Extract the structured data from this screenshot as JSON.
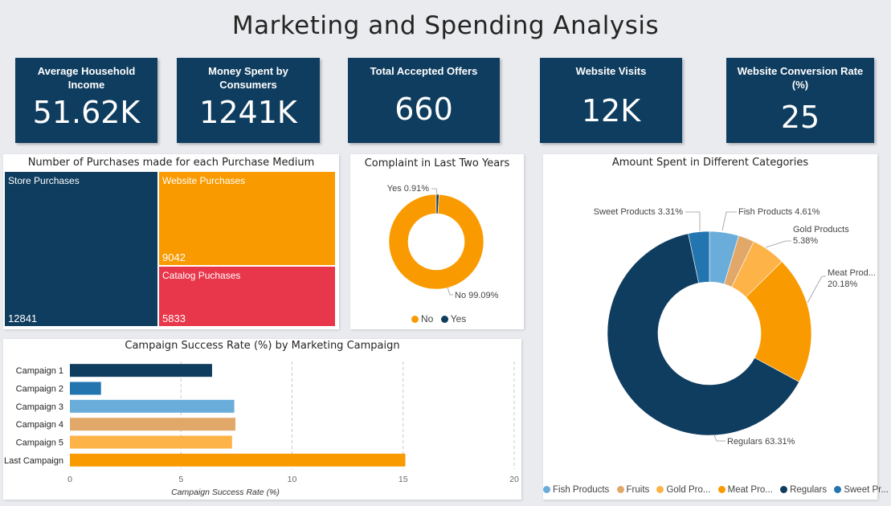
{
  "page": {
    "title": "Marketing and Spending Analysis"
  },
  "kpis": [
    {
      "label": "Average Household Income",
      "value": "51.62K"
    },
    {
      "label": "Money Spent by Consumers",
      "value": "1241K"
    },
    {
      "label": "Total Accepted Offers",
      "value": "660"
    },
    {
      "label": "Website Visits",
      "value": "12K"
    },
    {
      "label": "Website Conversion Rate (%)",
      "value": "25"
    }
  ],
  "chart_data": [
    {
      "type": "treemap",
      "title": "Number of Purchases made for each Purchase Medium",
      "categories": [
        "Store Purchases",
        "Website Purchases",
        "Catalog Puchases"
      ],
      "values": [
        12841,
        9042,
        5833
      ],
      "value_labels": [
        "12841",
        "9042",
        "5833"
      ],
      "colors": [
        "#0f3d5f",
        "#f99b00",
        "#e8364a"
      ]
    },
    {
      "type": "pie",
      "title": "Complaint in Last Two Years",
      "categories": [
        "No",
        "Yes"
      ],
      "values": [
        99.09,
        0.91
      ],
      "slice_labels": [
        "No 99.09%",
        "Yes 0.91%"
      ],
      "colors": [
        "#f99b00",
        "#0f3d5f"
      ],
      "legend": [
        "No",
        "Yes"
      ]
    },
    {
      "type": "bar",
      "orientation": "horizontal",
      "title": "Campaign Success Rate (%) by Marketing Campaign",
      "categories": [
        "Campaign 1",
        "Campaign 2",
        "Campaign 3",
        "Campaign 4",
        "Campaign 5",
        "Last Campaign"
      ],
      "values": [
        6.4,
        1.4,
        7.4,
        7.45,
        7.3,
        15.1
      ],
      "colors": [
        "#0f3d5f",
        "#2375b0",
        "#6aadda",
        "#e2a86a",
        "#fdb347",
        "#f99b00"
      ],
      "xlabel": "Campaign Success Rate (%)",
      "xlim": [
        0,
        20
      ],
      "xticks": [
        0,
        5,
        10,
        15,
        20
      ],
      "grid": true
    },
    {
      "type": "pie",
      "title": "Amount Spent in Different Categories",
      "categories": [
        "Fish Products",
        "Fruits",
        "Gold Products",
        "Meat Products",
        "Regulars",
        "Sweet Products"
      ],
      "values": [
        4.61,
        2.5,
        5.38,
        20.18,
        63.31,
        3.31
      ],
      "slice_labels": [
        "Fish Products 4.61%",
        "",
        "Gold Products 5.38%",
        "Meat Prod... 20.18%",
        "Regulars 63.31%",
        "Sweet Products 3.31%"
      ],
      "colors": [
        "#6aadda",
        "#e2a86a",
        "#fdb347",
        "#f99b00",
        "#0f3d5f",
        "#2375b0"
      ],
      "legend": [
        "Fish Products",
        "Fruits",
        "Gold Pro...",
        "Meat Pro...",
        "Regulars",
        "Sweet Pr..."
      ]
    }
  ]
}
